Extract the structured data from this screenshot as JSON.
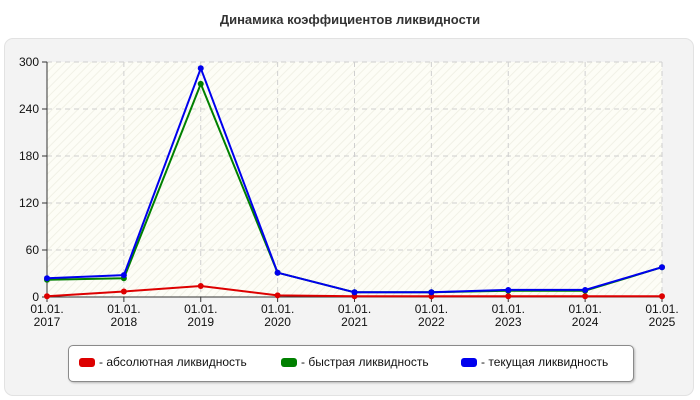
{
  "chart_data": {
    "type": "line",
    "title": "Динамика коэффициентов ликвидности",
    "categories": [
      "01.01.\n2017",
      "01.01.\n2018",
      "01.01.\n2019",
      "01.01.\n2020",
      "01.01.\n2021",
      "01.01.\n2022",
      "01.01.\n2023",
      "01.01.\n2024",
      "01.01.\n2025"
    ],
    "ylim": [
      0,
      300
    ],
    "yticks": [
      "0",
      "60",
      "120",
      "180",
      "240",
      "300"
    ],
    "grid": true,
    "legend_position": "bottom",
    "series": [
      {
        "name": "- абсолютная ликвидность",
        "color": "#dd0000",
        "values": [
          1,
          7,
          14,
          2,
          1,
          1,
          1,
          1,
          1
        ]
      },
      {
        "name": "- быстрая ликвидность",
        "color": "#008000",
        "values": [
          22,
          24,
          272,
          31,
          6,
          6,
          8,
          8,
          38
        ]
      },
      {
        "name": "- текущая ликвидность",
        "color": "#0000ee",
        "values": [
          24,
          28,
          292,
          31,
          6,
          6,
          9,
          9,
          38
        ]
      }
    ]
  }
}
